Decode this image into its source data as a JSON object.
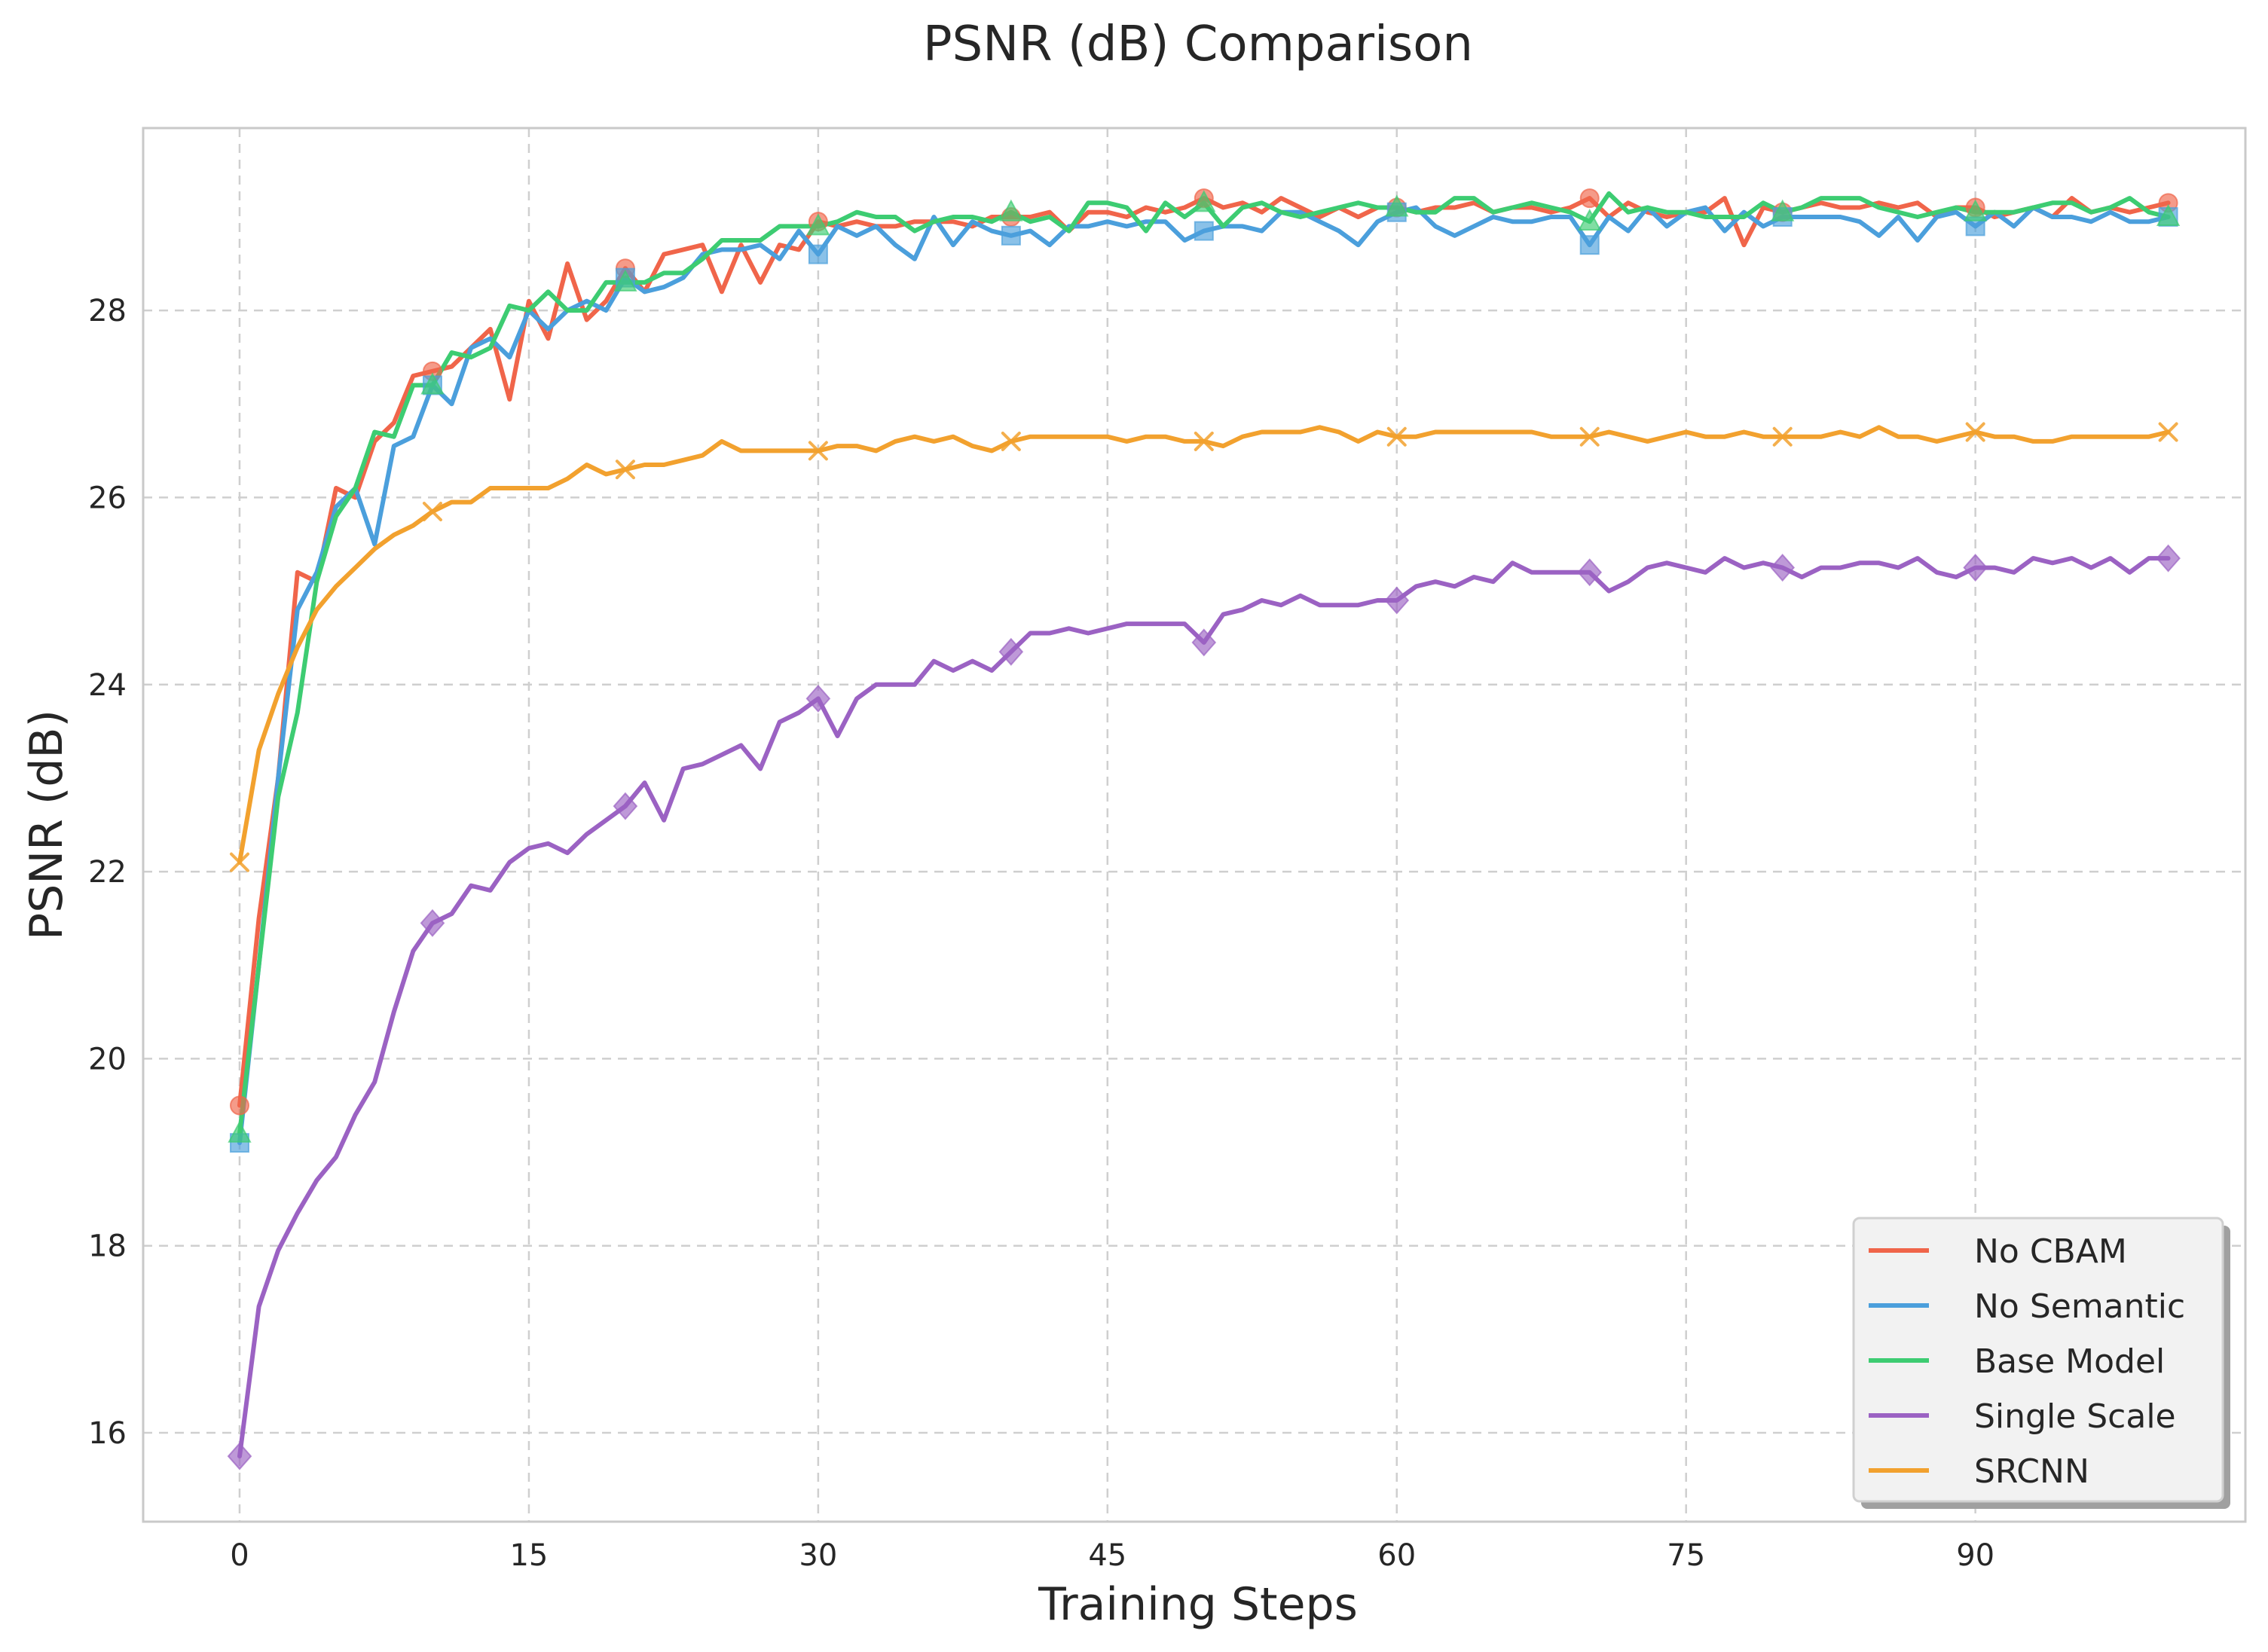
{
  "chart_data": {
    "type": "line",
    "title": "PSNR (dB) Comparison",
    "xlabel": "Training Steps",
    "ylabel": "PSNR (dB)",
    "xlim": [
      -5,
      104
    ],
    "ylim": [
      15.05,
      29.95
    ],
    "xticks": [
      0,
      15,
      30,
      45,
      60,
      75,
      90
    ],
    "yticks": [
      16,
      18,
      20,
      22,
      24,
      26,
      28
    ],
    "grid": true,
    "legend_position": "lower-right",
    "marker_every": 10,
    "series": [
      {
        "name": "No CBAM",
        "color": "#f0654a",
        "marker": "circle",
        "values": [
          19.5,
          21.5,
          23.0,
          25.2,
          25.1,
          26.1,
          26.0,
          26.6,
          26.8,
          27.3,
          27.35,
          27.4,
          27.6,
          27.8,
          27.05,
          28.1,
          27.7,
          28.5,
          27.9,
          28.1,
          28.45,
          28.2,
          28.6,
          28.65,
          28.7,
          28.2,
          28.7,
          28.3,
          28.7,
          28.65,
          28.95,
          28.9,
          28.95,
          28.9,
          28.9,
          28.95,
          28.95,
          28.95,
          28.9,
          29.0,
          29.0,
          29.0,
          29.05,
          28.85,
          29.05,
          29.05,
          29.0,
          29.1,
          29.05,
          29.1,
          29.2,
          29.1,
          29.15,
          29.05,
          29.2,
          29.1,
          29.0,
          29.1,
          29.0,
          29.1,
          29.1,
          29.05,
          29.1,
          29.1,
          29.15,
          29.05,
          29.1,
          29.1,
          29.05,
          29.1,
          29.2,
          29.0,
          29.15,
          29.05,
          29.0,
          29.05,
          29.05,
          29.2,
          28.7,
          29.1,
          29.05,
          29.1,
          29.15,
          29.1,
          29.1,
          29.15,
          29.1,
          29.15,
          29.0,
          29.1,
          29.1,
          29.0,
          29.05,
          29.1,
          29.0,
          29.2,
          29.05,
          29.1,
          29.05,
          29.1,
          29.15
        ]
      },
      {
        "name": "No Semantic",
        "color": "#4b9fdc",
        "marker": "square",
        "values": [
          19.1,
          21.0,
          23.0,
          24.8,
          25.2,
          25.9,
          26.1,
          25.5,
          26.55,
          26.65,
          27.2,
          27.0,
          27.6,
          27.7,
          27.5,
          28.0,
          27.8,
          28.0,
          28.1,
          28.0,
          28.35,
          28.2,
          28.25,
          28.35,
          28.6,
          28.65,
          28.65,
          28.7,
          28.55,
          28.85,
          28.6,
          28.9,
          28.8,
          28.9,
          28.7,
          28.55,
          29.0,
          28.7,
          28.95,
          28.85,
          28.8,
          28.85,
          28.7,
          28.9,
          28.9,
          28.95,
          28.9,
          28.95,
          28.95,
          28.75,
          28.85,
          28.9,
          28.9,
          28.85,
          29.05,
          29.05,
          28.95,
          28.85,
          28.7,
          28.95,
          29.05,
          29.1,
          28.9,
          28.8,
          28.9,
          29.0,
          28.95,
          28.95,
          29.0,
          29.0,
          28.7,
          29.0,
          28.85,
          29.1,
          28.9,
          29.05,
          29.1,
          28.85,
          29.05,
          28.9,
          29.0,
          29.0,
          29.0,
          29.0,
          28.95,
          28.8,
          29.0,
          28.75,
          29.0,
          29.05,
          28.9,
          29.05,
          28.9,
          29.1,
          29.0,
          29.0,
          28.95,
          29.05,
          28.95,
          28.95,
          29.0
        ]
      },
      {
        "name": "Base Model",
        "color": "#3dcc72",
        "marker": "triangle",
        "values": [
          19.2,
          21.0,
          22.8,
          23.7,
          25.1,
          25.8,
          26.1,
          26.7,
          26.65,
          27.2,
          27.2,
          27.55,
          27.5,
          27.6,
          28.05,
          28.0,
          28.2,
          28.0,
          28.0,
          28.3,
          28.3,
          28.3,
          28.4,
          28.4,
          28.55,
          28.75,
          28.75,
          28.75,
          28.9,
          28.9,
          28.9,
          28.95,
          29.05,
          29.0,
          29.0,
          28.85,
          28.95,
          29.0,
          29.0,
          28.95,
          29.05,
          28.95,
          29.0,
          28.85,
          29.15,
          29.15,
          29.1,
          28.85,
          29.15,
          29.0,
          29.15,
          28.9,
          29.1,
          29.15,
          29.05,
          29.0,
          29.05,
          29.1,
          29.15,
          29.1,
          29.1,
          29.05,
          29.05,
          29.2,
          29.2,
          29.05,
          29.1,
          29.15,
          29.1,
          29.05,
          28.95,
          29.25,
          29.05,
          29.1,
          29.05,
          29.05,
          29.0,
          29.0,
          29.0,
          29.15,
          29.05,
          29.1,
          29.2,
          29.2,
          29.2,
          29.1,
          29.05,
          29.0,
          29.05,
          29.1,
          29.05,
          29.05,
          29.05,
          29.1,
          29.15,
          29.15,
          29.05,
          29.1,
          29.2,
          29.05,
          29.0
        ]
      },
      {
        "name": "Single Scale",
        "color": "#9b62c3",
        "marker": "diamond",
        "values": [
          15.75,
          17.35,
          17.95,
          18.35,
          18.7,
          18.95,
          19.4,
          19.75,
          20.5,
          21.15,
          21.45,
          21.55,
          21.85,
          21.8,
          22.1,
          22.25,
          22.3,
          22.2,
          22.4,
          22.55,
          22.7,
          22.95,
          22.55,
          23.1,
          23.15,
          23.25,
          23.35,
          23.1,
          23.6,
          23.7,
          23.85,
          23.45,
          23.85,
          24.0,
          24.0,
          24.0,
          24.25,
          24.15,
          24.25,
          24.15,
          24.35,
          24.55,
          24.55,
          24.6,
          24.55,
          24.6,
          24.65,
          24.65,
          24.65,
          24.65,
          24.45,
          24.75,
          24.8,
          24.9,
          24.85,
          24.95,
          24.85,
          24.85,
          24.85,
          24.9,
          24.9,
          25.05,
          25.1,
          25.05,
          25.15,
          25.1,
          25.3,
          25.2,
          25.2,
          25.2,
          25.2,
          25.0,
          25.1,
          25.25,
          25.3,
          25.25,
          25.2,
          25.35,
          25.25,
          25.3,
          25.25,
          25.15,
          25.25,
          25.25,
          25.3,
          25.3,
          25.25,
          25.35,
          25.2,
          25.15,
          25.25,
          25.25,
          25.2,
          25.35,
          25.3,
          25.35,
          25.25,
          25.35,
          25.2,
          25.35,
          25.35
        ]
      },
      {
        "name": "SRCNN",
        "color": "#f2a12e",
        "marker": "x",
        "values": [
          22.1,
          23.3,
          23.9,
          24.4,
          24.8,
          25.05,
          25.25,
          25.45,
          25.6,
          25.7,
          25.85,
          25.95,
          25.95,
          26.1,
          26.1,
          26.1,
          26.1,
          26.2,
          26.35,
          26.25,
          26.3,
          26.35,
          26.35,
          26.4,
          26.45,
          26.6,
          26.5,
          26.5,
          26.5,
          26.5,
          26.5,
          26.55,
          26.55,
          26.5,
          26.6,
          26.65,
          26.6,
          26.65,
          26.55,
          26.5,
          26.6,
          26.65,
          26.65,
          26.65,
          26.65,
          26.65,
          26.6,
          26.65,
          26.65,
          26.6,
          26.6,
          26.55,
          26.65,
          26.7,
          26.7,
          26.7,
          26.75,
          26.7,
          26.6,
          26.7,
          26.65,
          26.65,
          26.7,
          26.7,
          26.7,
          26.7,
          26.7,
          26.7,
          26.65,
          26.65,
          26.65,
          26.7,
          26.65,
          26.6,
          26.65,
          26.7,
          26.65,
          26.65,
          26.7,
          26.65,
          26.65,
          26.65,
          26.65,
          26.7,
          26.65,
          26.75,
          26.65,
          26.65,
          26.6,
          26.65,
          26.7,
          26.65,
          26.65,
          26.6,
          26.6,
          26.65,
          26.65,
          26.65,
          26.65,
          26.65,
          26.7
        ]
      }
    ]
  }
}
